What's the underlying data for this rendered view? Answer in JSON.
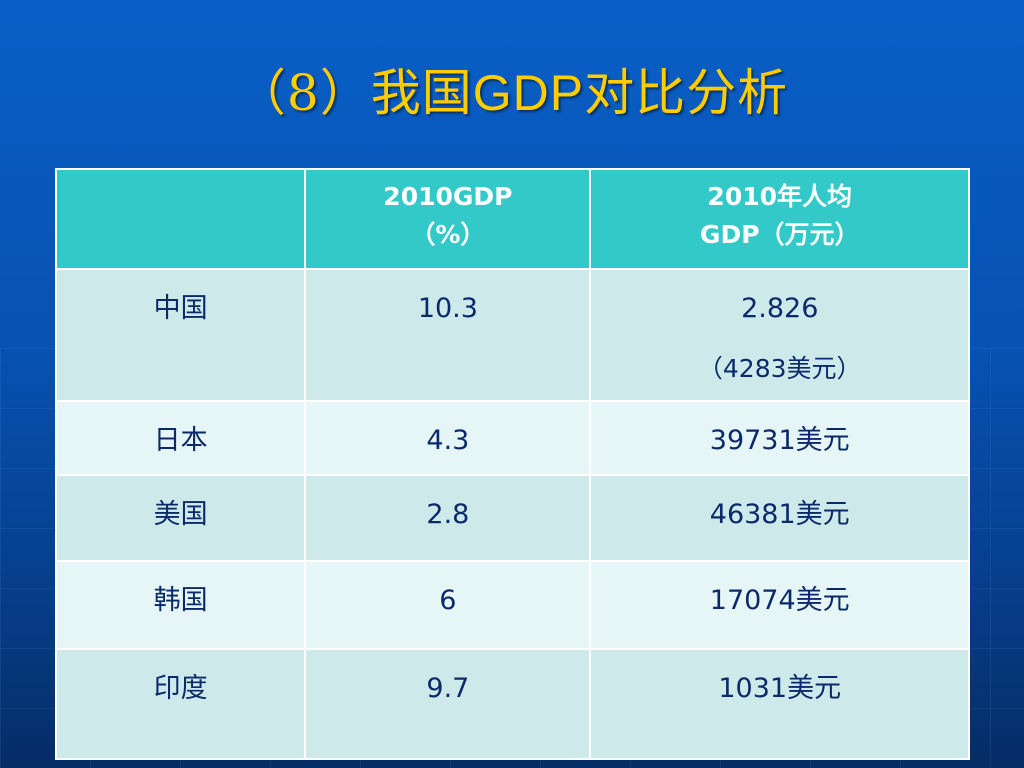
{
  "title": {
    "prefix": "（8）我国",
    "latin": "GDP",
    "suffix": "对比分析"
  },
  "table": {
    "headers": [
      {
        "line1": "",
        "line2": ""
      },
      {
        "line1": "2010GDP",
        "line2": "（%）"
      },
      {
        "line1": "2010年人均",
        "line2": "GDP（万元）"
      }
    ],
    "rows": [
      {
        "country": "中国",
        "gdp_growth": "10.3",
        "per_capita": "2.826",
        "per_capita_note": "（4283美元）"
      },
      {
        "country": "日本",
        "gdp_growth": "4.3",
        "per_capita": "39731美元",
        "per_capita_note": ""
      },
      {
        "country": "美国",
        "gdp_growth": "2.8",
        "per_capita": "46381美元",
        "per_capita_note": ""
      },
      {
        "country": "韩国",
        "gdp_growth": "6",
        "per_capita": "17074美元",
        "per_capita_note": ""
      },
      {
        "country": "印度",
        "gdp_growth": "9.7",
        "per_capita": "1031美元",
        "per_capita_note": ""
      }
    ]
  },
  "colors": {
    "title": "#ffcc00",
    "header_bg": "#33c9c9",
    "row_odd": "#cde9ea",
    "row_even": "#e6f5f5",
    "text": "#0a2a6b"
  }
}
